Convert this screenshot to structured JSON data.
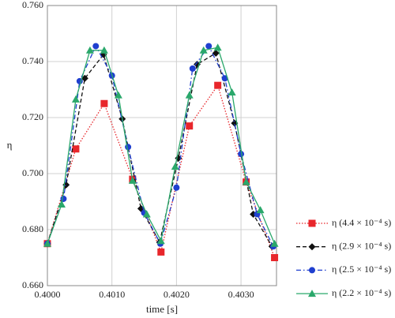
{
  "chart_data": {
    "type": "line",
    "xlabel": "time [s]",
    "ylabel": "η",
    "xlim": [
      0.4,
      0.40355
    ],
    "ylim": [
      0.66,
      0.76
    ],
    "xticks": [
      {
        "value": 0.4,
        "label": "0.4000"
      },
      {
        "value": 0.401,
        "label": "0.4010"
      },
      {
        "value": 0.402,
        "label": "0.4020"
      },
      {
        "value": 0.403,
        "label": "0.4030"
      }
    ],
    "yticks": [
      {
        "value": 0.66,
        "label": "0.660"
      },
      {
        "value": 0.68,
        "label": "0.680"
      },
      {
        "value": 0.7,
        "label": "0.700"
      },
      {
        "value": 0.72,
        "label": "0.720"
      },
      {
        "value": 0.74,
        "label": "0.740"
      },
      {
        "value": 0.76,
        "label": "0.760"
      }
    ],
    "grid": true,
    "legend": "right",
    "series": [
      {
        "name": "η (4.4 × 10⁻⁴ s)",
        "color": "#e8262b",
        "dash": "dotted",
        "marker": "square",
        "x": [
          0.4,
          0.40044,
          0.40088,
          0.40132,
          0.40176,
          0.4022,
          0.40264,
          0.40308,
          0.40352
        ],
        "values": [
          0.675,
          0.7088,
          0.725,
          0.698,
          0.672,
          0.717,
          0.7315,
          0.697,
          0.67
        ]
      },
      {
        "name": "η (2.9 × 10⁻⁴ s)",
        "color": "#111111",
        "dash": "dashed",
        "marker": "diamond",
        "x": [
          0.4,
          0.40029,
          0.40058,
          0.40087,
          0.40116,
          0.40145,
          0.40174,
          0.40203,
          0.40232,
          0.40261,
          0.4029,
          0.40319,
          0.40348
        ],
        "values": [
          0.675,
          0.696,
          0.734,
          0.7425,
          0.7195,
          0.6875,
          0.6755,
          0.7055,
          0.739,
          0.743,
          0.718,
          0.6855,
          0.674
        ]
      },
      {
        "name": "η (2.5 × 10⁻⁴ s)",
        "color": "#1f3fcf",
        "dash": "dashdot",
        "marker": "circle",
        "x": [
          0.4,
          0.40025,
          0.4005,
          0.40075,
          0.401,
          0.40125,
          0.4015,
          0.40175,
          0.402,
          0.40225,
          0.4025,
          0.40275,
          0.403,
          0.40325,
          0.4035
        ],
        "values": [
          0.675,
          0.691,
          0.733,
          0.7455,
          0.735,
          0.7095,
          0.686,
          0.675,
          0.695,
          0.7375,
          0.7455,
          0.734,
          0.707,
          0.6855,
          0.674
        ]
      },
      {
        "name": "η (2.2 × 10⁻⁴ s)",
        "color": "#2aa86b",
        "dash": "solid",
        "marker": "triangle",
        "x": [
          0.4,
          0.40022,
          0.40044,
          0.40066,
          0.40088,
          0.4011,
          0.40132,
          0.40154,
          0.40176,
          0.40198,
          0.4022,
          0.40242,
          0.40264,
          0.40286,
          0.40308,
          0.4033,
          0.40352
        ],
        "values": [
          0.675,
          0.689,
          0.7265,
          0.744,
          0.744,
          0.728,
          0.6975,
          0.6855,
          0.676,
          0.7025,
          0.728,
          0.744,
          0.745,
          0.729,
          0.697,
          0.687,
          0.675
        ]
      }
    ]
  }
}
